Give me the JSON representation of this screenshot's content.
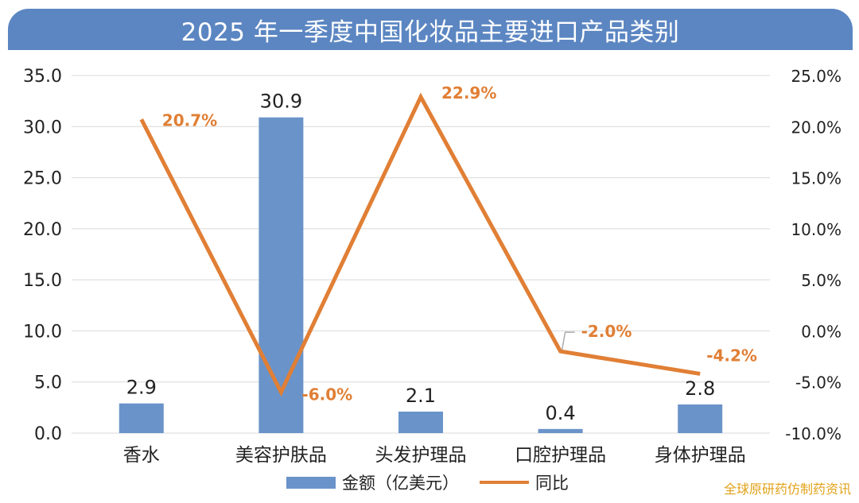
{
  "title": "2025 年一季度中国化妆品主要进口产品类别",
  "watermark": "全球原研药仿制药资讯",
  "colors": {
    "bar": "#6a93c9",
    "line": "#e07f35",
    "title_bg": "#5b86c2"
  },
  "chart_data": {
    "type": "bar+line",
    "categories": [
      "香水",
      "美容护肤品",
      "头发护理品",
      "口腔护理品",
      "身体护理品"
    ],
    "series": [
      {
        "name": "金额（亿美元）",
        "type": "bar",
        "axis": "left",
        "values": [
          2.9,
          30.9,
          2.1,
          0.4,
          2.8
        ],
        "labels": [
          "2.9",
          "30.9",
          "2.1",
          "0.4",
          "2.8"
        ]
      },
      {
        "name": "同比",
        "type": "line",
        "axis": "right",
        "values": [
          20.7,
          -6.0,
          22.9,
          -2.0,
          -4.2
        ],
        "labels": [
          "20.7%",
          "-6.0%",
          "22.9%",
          "-2.0%",
          "-4.2%"
        ]
      }
    ],
    "y_left": {
      "min": 0,
      "max": 35,
      "step": 5,
      "ticks": [
        "0.0",
        "5.0",
        "10.0",
        "15.0",
        "20.0",
        "25.0",
        "30.0",
        "35.0"
      ]
    },
    "y_right": {
      "min": -10,
      "max": 25,
      "step": 5,
      "ticks": [
        "-10.0%",
        "-5.0%",
        "0.0%",
        "5.0%",
        "10.0%",
        "15.0%",
        "20.0%",
        "25.0%"
      ]
    },
    "grid": true,
    "legend_position": "bottom"
  }
}
